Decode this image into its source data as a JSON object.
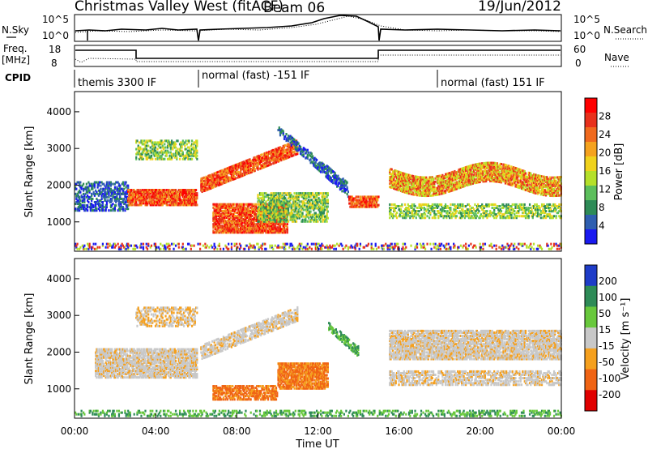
{
  "header": {
    "title": "Christmas Valley West (fitACF)",
    "beam": "Beam 06",
    "date": "19/Jun/2012"
  },
  "top_panels": {
    "nsky_label": "N.Sky",
    "nsearch_label": "N.Search",
    "noise_ticks": [
      "10^5",
      "10^0"
    ],
    "freq_label_1": "Freq.",
    "freq_label_2": "[MHz]",
    "freq_ticks": [
      "18",
      "8"
    ],
    "nave_label": "Nave",
    "nave_ticks": [
      "60",
      "0"
    ],
    "cpid_label": "CPID",
    "cpid_segments": [
      "themis 3300 IF",
      "normal (fast) -151 IF",
      "normal (fast) 151 IF"
    ]
  },
  "colors": {
    "power_scale": [
      "#1a1af0",
      "#2f5fb0",
      "#2e8b57",
      "#5cbf5c",
      "#b5e02a",
      "#f0d21c",
      "#f5a21e",
      "#f06a1e",
      "#e8311c",
      "#ff0000"
    ],
    "velocity_scale": [
      "#e00000",
      "#f06414",
      "#f5a01e",
      "#c8c8c8",
      "#68c83c",
      "#2e8b57",
      "#1e3cc8"
    ]
  },
  "chart_data": [
    {
      "type": "heatmap",
      "name": "power",
      "ylabel": "Slant Range [km]",
      "yticks": [
        "4000",
        "3000",
        "2000",
        "1000"
      ],
      "ylim": [
        200,
        4550
      ],
      "xlim": [
        "00:00",
        "24:00"
      ],
      "colorbar_label": "Power [dB]",
      "colorbar_ticks": [
        "28",
        "24",
        "20",
        "16",
        "12",
        "8",
        "4"
      ]
    },
    {
      "type": "heatmap",
      "name": "velocity",
      "ylabel": "Slant Range [km]",
      "yticks": [
        "4000",
        "3000",
        "2000",
        "1000"
      ],
      "ylim": [
        200,
        4550
      ],
      "xlabel": "Time UT",
      "xticks": [
        "00:00",
        "04:00",
        "08:00",
        "12:00",
        "16:00",
        "20:00",
        "00:00"
      ],
      "colorbar_label": "Velocity [m s⁻¹]",
      "colorbar_ticks": [
        "200",
        "100",
        "50",
        "15",
        "-15",
        "-50",
        "-100",
        "-200"
      ]
    }
  ]
}
